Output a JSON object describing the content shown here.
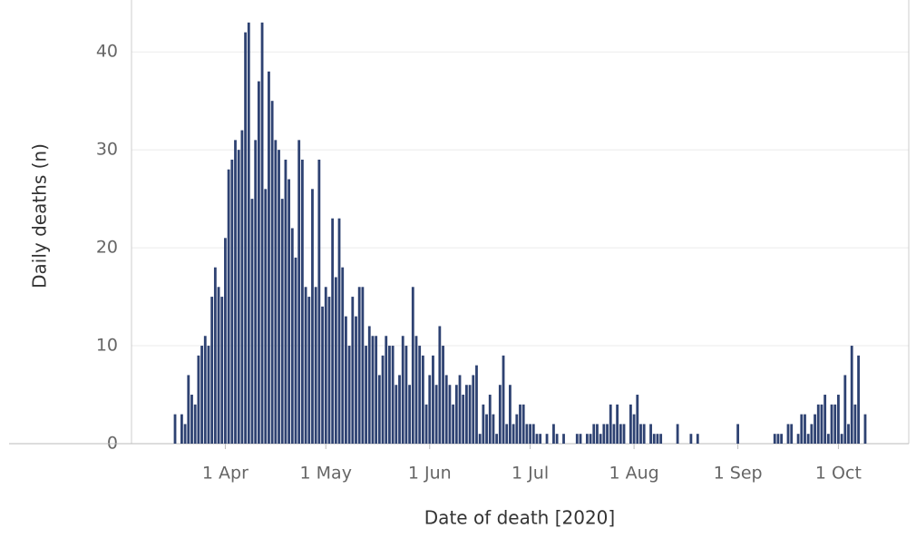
{
  "chart_data": {
    "type": "bar",
    "x_label": "Date of death [2020]",
    "y_label": "Daily deaths (n)",
    "color": "#2e4272",
    "grid": true,
    "xlim": [
      "2020-03-04",
      "2020-10-22"
    ],
    "xticks": [
      {
        "value": "2020-04-01",
        "label": "1 Apr"
      },
      {
        "value": "2020-05-01",
        "label": "1 May"
      },
      {
        "value": "2020-06-01",
        "label": "1 Jun"
      },
      {
        "value": "2020-07-01",
        "label": "1 Jul"
      },
      {
        "value": "2020-08-01",
        "label": "1 Aug"
      },
      {
        "value": "2020-09-01",
        "label": "1 Sep"
      },
      {
        "value": "2020-10-01",
        "label": "1 Oct"
      }
    ],
    "ylim": [
      0,
      45.3
    ],
    "yticks": [
      0,
      10,
      20,
      30,
      40
    ],
    "x": [
      "2020-03-17",
      "2020-03-19",
      "2020-03-20",
      "2020-03-21",
      "2020-03-22",
      "2020-03-23",
      "2020-03-24",
      "2020-03-25",
      "2020-03-26",
      "2020-03-27",
      "2020-03-28",
      "2020-03-29",
      "2020-03-30",
      "2020-03-31",
      "2020-04-01",
      "2020-04-02",
      "2020-04-03",
      "2020-04-04",
      "2020-04-05",
      "2020-04-06",
      "2020-04-07",
      "2020-04-08",
      "2020-04-09",
      "2020-04-10",
      "2020-04-11",
      "2020-04-12",
      "2020-04-13",
      "2020-04-14",
      "2020-04-15",
      "2020-04-16",
      "2020-04-17",
      "2020-04-18",
      "2020-04-19",
      "2020-04-20",
      "2020-04-21",
      "2020-04-22",
      "2020-04-23",
      "2020-04-24",
      "2020-04-25",
      "2020-04-26",
      "2020-04-27",
      "2020-04-28",
      "2020-04-29",
      "2020-04-30",
      "2020-05-01",
      "2020-05-02",
      "2020-05-03",
      "2020-05-04",
      "2020-05-05",
      "2020-05-06",
      "2020-05-07",
      "2020-05-08",
      "2020-05-09",
      "2020-05-10",
      "2020-05-11",
      "2020-05-12",
      "2020-05-13",
      "2020-05-14",
      "2020-05-15",
      "2020-05-16",
      "2020-05-17",
      "2020-05-18",
      "2020-05-19",
      "2020-05-20",
      "2020-05-21",
      "2020-05-22",
      "2020-05-23",
      "2020-05-24",
      "2020-05-25",
      "2020-05-26",
      "2020-05-27",
      "2020-05-28",
      "2020-05-29",
      "2020-05-30",
      "2020-05-31",
      "2020-06-01",
      "2020-06-02",
      "2020-06-03",
      "2020-06-04",
      "2020-06-05",
      "2020-06-06",
      "2020-06-07",
      "2020-06-08",
      "2020-06-09",
      "2020-06-10",
      "2020-06-11",
      "2020-06-12",
      "2020-06-13",
      "2020-06-14",
      "2020-06-15",
      "2020-06-16",
      "2020-06-17",
      "2020-06-18",
      "2020-06-19",
      "2020-06-20",
      "2020-06-21",
      "2020-06-22",
      "2020-06-23",
      "2020-06-24",
      "2020-06-25",
      "2020-06-26",
      "2020-06-27",
      "2020-06-28",
      "2020-06-29",
      "2020-06-30",
      "2020-07-01",
      "2020-07-02",
      "2020-07-03",
      "2020-07-04",
      "2020-07-06",
      "2020-07-08",
      "2020-07-09",
      "2020-07-11",
      "2020-07-15",
      "2020-07-16",
      "2020-07-18",
      "2020-07-19",
      "2020-07-20",
      "2020-07-21",
      "2020-07-22",
      "2020-07-23",
      "2020-07-24",
      "2020-07-25",
      "2020-07-26",
      "2020-07-27",
      "2020-07-28",
      "2020-07-29",
      "2020-07-31",
      "2020-08-01",
      "2020-08-02",
      "2020-08-03",
      "2020-08-04",
      "2020-08-06",
      "2020-08-07",
      "2020-08-08",
      "2020-08-09",
      "2020-08-14",
      "2020-08-18",
      "2020-08-20",
      "2020-09-01",
      "2020-09-12",
      "2020-09-13",
      "2020-09-14",
      "2020-09-16",
      "2020-09-17",
      "2020-09-19",
      "2020-09-20",
      "2020-09-21",
      "2020-09-22",
      "2020-09-23",
      "2020-09-24",
      "2020-09-25",
      "2020-09-26",
      "2020-09-27",
      "2020-09-28",
      "2020-09-29",
      "2020-09-30",
      "2020-10-01",
      "2020-10-02",
      "2020-10-03",
      "2020-10-04",
      "2020-10-05",
      "2020-10-06",
      "2020-10-07",
      "2020-10-09"
    ],
    "values": [
      3,
      3,
      2,
      7,
      5,
      4,
      9,
      10,
      11,
      10,
      15,
      18,
      16,
      15,
      21,
      28,
      29,
      31,
      30,
      32,
      42,
      43,
      25,
      31,
      37,
      43,
      26,
      38,
      35,
      31,
      30,
      25,
      29,
      27,
      22,
      19,
      31,
      29,
      16,
      15,
      26,
      16,
      29,
      14,
      16,
      15,
      23,
      17,
      23,
      18,
      13,
      10,
      15,
      13,
      16,
      16,
      10,
      12,
      11,
      11,
      7,
      9,
      11,
      10,
      10,
      6,
      7,
      11,
      10,
      6,
      16,
      11,
      10,
      9,
      4,
      7,
      9,
      6,
      12,
      10,
      7,
      6,
      4,
      6,
      7,
      5,
      6,
      6,
      7,
      8,
      1,
      4,
      3,
      5,
      3,
      1,
      6,
      9,
      2,
      6,
      2,
      3,
      4,
      4,
      2,
      2,
      2,
      1,
      1,
      1,
      2,
      1,
      1,
      1,
      1,
      1,
      1,
      2,
      2,
      1,
      2,
      2,
      4,
      2,
      4,
      2,
      2,
      4,
      3,
      5,
      2,
      2,
      2,
      1,
      1,
      1,
      2,
      1,
      1,
      2,
      1,
      1,
      1,
      2,
      2,
      1,
      3,
      3,
      1,
      2,
      3,
      4,
      4,
      5,
      1,
      4,
      4,
      5,
      1,
      7,
      2,
      10,
      4,
      9,
      3
    ]
  }
}
